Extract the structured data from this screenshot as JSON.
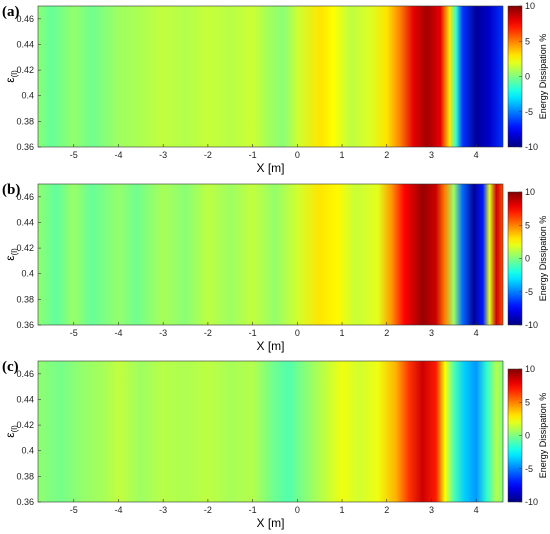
{
  "chart_data": [
    {
      "type": "heatmap",
      "panel_label": "(a)",
      "xlabel": "X [m]",
      "ylabel": "ε",
      "ylabel_sub": "(l)",
      "colorbar_label": "Energy Dissipation %",
      "xlim": [
        -5.8,
        4.6
      ],
      "ylim": [
        0.36,
        0.47
      ],
      "x_ticks": [
        "-5",
        "-4",
        "-3",
        "-2",
        "-1",
        "0",
        "1",
        "2",
        "3",
        "4"
      ],
      "y_ticks": [
        "0.36",
        "0.38",
        "0.4",
        "0.42",
        "0.44",
        "0.46"
      ],
      "clim": [
        -10,
        10
      ],
      "colorbar_ticks": [
        "-10",
        "-5",
        "0",
        "5",
        "10"
      ],
      "profile": [
        {
          "x": -5.8,
          "v": 0.2
        },
        {
          "x": -5.5,
          "v": -0.5
        },
        {
          "x": -5.0,
          "v": 0.4
        },
        {
          "x": -4.6,
          "v": -0.3
        },
        {
          "x": -4.0,
          "v": 0.6
        },
        {
          "x": -3.5,
          "v": 0.9
        },
        {
          "x": -3.0,
          "v": 1.3
        },
        {
          "x": -2.5,
          "v": 1.0
        },
        {
          "x": -2.0,
          "v": 1.4
        },
        {
          "x": -1.5,
          "v": 1.1
        },
        {
          "x": -1.0,
          "v": 1.5
        },
        {
          "x": -0.6,
          "v": 0.6
        },
        {
          "x": -0.3,
          "v": 0.2
        },
        {
          "x": 0.0,
          "v": 1.5
        },
        {
          "x": 0.5,
          "v": 3.0
        },
        {
          "x": 0.8,
          "v": 2.5
        },
        {
          "x": 1.2,
          "v": 1.2
        },
        {
          "x": 1.6,
          "v": 1.8
        },
        {
          "x": 2.0,
          "v": 3.0
        },
        {
          "x": 2.3,
          "v": 5.0
        },
        {
          "x": 2.6,
          "v": 8.0
        },
        {
          "x": 2.9,
          "v": 9.3
        },
        {
          "x": 3.2,
          "v": 8.0
        },
        {
          "x": 3.4,
          "v": 3.0
        },
        {
          "x": 3.55,
          "v": -1.5
        },
        {
          "x": 3.7,
          "v": -6.5
        },
        {
          "x": 4.0,
          "v": -9.5
        },
        {
          "x": 4.3,
          "v": -8.5
        },
        {
          "x": 4.6,
          "v": -6.5
        }
      ]
    },
    {
      "type": "heatmap",
      "panel_label": "(b)",
      "xlabel": "X [m]",
      "ylabel": "ε",
      "ylabel_sub": "(l)",
      "colorbar_label": "Energy Dissipation %",
      "xlim": [
        -5.8,
        4.6
      ],
      "ylim": [
        0.36,
        0.47
      ],
      "x_ticks": [
        "-5",
        "-4",
        "-3",
        "-2",
        "-1",
        "0",
        "1",
        "2",
        "3",
        "4"
      ],
      "y_ticks": [
        "0.36",
        "0.38",
        "0.4",
        "0.42",
        "0.44",
        "0.46"
      ],
      "clim": [
        -10,
        10
      ],
      "colorbar_ticks": [
        "-10",
        "-5",
        "0",
        "5",
        "10"
      ],
      "profile": [
        {
          "x": -5.8,
          "v": 0.3
        },
        {
          "x": -5.4,
          "v": -0.6
        },
        {
          "x": -5.0,
          "v": 0.5
        },
        {
          "x": -4.6,
          "v": -0.5
        },
        {
          "x": -4.0,
          "v": 0.4
        },
        {
          "x": -3.6,
          "v": -0.3
        },
        {
          "x": -3.0,
          "v": 0.8
        },
        {
          "x": -2.5,
          "v": 0.2
        },
        {
          "x": -2.0,
          "v": 1.2
        },
        {
          "x": -1.5,
          "v": 0.6
        },
        {
          "x": -1.0,
          "v": 1.3
        },
        {
          "x": -0.5,
          "v": 0.4
        },
        {
          "x": 0.0,
          "v": 1.6
        },
        {
          "x": 0.5,
          "v": 3.0
        },
        {
          "x": 0.9,
          "v": 2.6
        },
        {
          "x": 1.3,
          "v": 1.4
        },
        {
          "x": 1.8,
          "v": 2.0
        },
        {
          "x": 2.1,
          "v": 4.5
        },
        {
          "x": 2.4,
          "v": 7.5
        },
        {
          "x": 2.8,
          "v": 9.5
        },
        {
          "x": 3.1,
          "v": 8.5
        },
        {
          "x": 3.3,
          "v": 5.0
        },
        {
          "x": 3.5,
          "v": 0.5
        },
        {
          "x": 3.7,
          "v": -5.5
        },
        {
          "x": 3.95,
          "v": -9.5
        },
        {
          "x": 4.15,
          "v": -7.0
        },
        {
          "x": 4.3,
          "v": 2.0
        },
        {
          "x": 4.45,
          "v": 8.5
        },
        {
          "x": 4.6,
          "v": 6.0
        }
      ]
    },
    {
      "type": "heatmap",
      "panel_label": "(c)",
      "xlabel": "X [m]",
      "ylabel": "ε",
      "ylabel_sub": "(l)",
      "colorbar_label": "Energy Dissipation %",
      "xlim": [
        -5.8,
        4.6
      ],
      "ylim": [
        0.36,
        0.47
      ],
      "x_ticks": [
        "-5",
        "-4",
        "-3",
        "-2",
        "-1",
        "0",
        "1",
        "2",
        "3",
        "4"
      ],
      "y_ticks": [
        "0.36",
        "0.38",
        "0.4",
        "0.42",
        "0.44",
        "0.46"
      ],
      "clim": [
        -10,
        10
      ],
      "colorbar_ticks": [
        "-10",
        "-5",
        "0",
        "5",
        "10"
      ],
      "profile": [
        {
          "x": -5.8,
          "v": 0.3
        },
        {
          "x": -5.3,
          "v": -0.2
        },
        {
          "x": -4.8,
          "v": 0.4
        },
        {
          "x": -4.3,
          "v": 0.8
        },
        {
          "x": -4.0,
          "v": 1.3
        },
        {
          "x": -3.5,
          "v": 0.6
        },
        {
          "x": -3.0,
          "v": 1.1
        },
        {
          "x": -2.5,
          "v": 0.9
        },
        {
          "x": -2.0,
          "v": 1.2
        },
        {
          "x": -1.5,
          "v": 0.8
        },
        {
          "x": -1.0,
          "v": 1.0
        },
        {
          "x": -0.5,
          "v": -0.4
        },
        {
          "x": -0.2,
          "v": -0.9
        },
        {
          "x": 0.2,
          "v": 0.2
        },
        {
          "x": 0.6,
          "v": 1.2
        },
        {
          "x": 1.0,
          "v": 2.2
        },
        {
          "x": 1.4,
          "v": 1.6
        },
        {
          "x": 1.8,
          "v": 2.2
        },
        {
          "x": 2.2,
          "v": 4.0
        },
        {
          "x": 2.5,
          "v": 6.5
        },
        {
          "x": 2.8,
          "v": 8.5
        },
        {
          "x": 3.1,
          "v": 7.0
        },
        {
          "x": 3.3,
          "v": 2.5
        },
        {
          "x": 3.5,
          "v": -1.0
        },
        {
          "x": 3.75,
          "v": -3.5
        },
        {
          "x": 4.0,
          "v": -4.5
        },
        {
          "x": 4.25,
          "v": -1.5
        },
        {
          "x": 4.45,
          "v": 1.0
        },
        {
          "x": 4.6,
          "v": 0.0
        }
      ]
    }
  ]
}
